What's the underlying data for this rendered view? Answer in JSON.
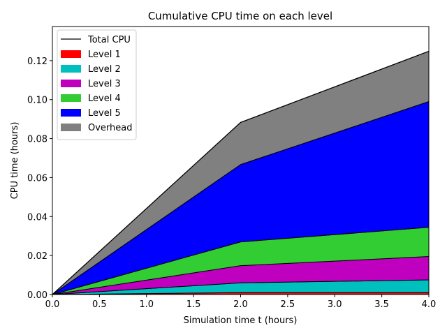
{
  "chart_data": {
    "type": "area",
    "stacked": true,
    "title": "Cumulative CPU time on each level",
    "xlabel": "Simulation time t (hours)",
    "ylabel": "CPU time (hours)",
    "xlim": [
      0.0,
      4.0
    ],
    "ylim": [
      0.0,
      0.1375
    ],
    "x_ticks": [
      "0.0",
      "0.5",
      "1.0",
      "1.5",
      "2.0",
      "2.5",
      "3.0",
      "3.5",
      "4.0"
    ],
    "y_ticks": [
      "0.00",
      "0.02",
      "0.04",
      "0.06",
      "0.08",
      "0.10",
      "0.12"
    ],
    "grid": false,
    "legend_position": "upper-left",
    "x": [
      0.0,
      2.0,
      4.0
    ],
    "series": [
      {
        "name": "Level 1",
        "color": "#ff0000",
        "values": [
          0.0,
          0.001,
          0.001
        ]
      },
      {
        "name": "Level 2",
        "color": "#00bfbf",
        "values": [
          0.0,
          0.005,
          0.0065
        ]
      },
      {
        "name": "Level 3",
        "color": "#bf00bf",
        "values": [
          0.0,
          0.0088,
          0.012
        ]
      },
      {
        "name": "Level 4",
        "color": "#32cd32",
        "values": [
          0.0,
          0.0122,
          0.015
        ]
      },
      {
        "name": "Level 5",
        "color": "#0000ff",
        "values": [
          0.0,
          0.0397,
          0.0645
        ]
      },
      {
        "name": "Overhead",
        "color": "#808080",
        "values": [
          0.0,
          0.0216,
          0.0258
        ]
      }
    ],
    "total_line": {
      "name": "Total CPU",
      "color": "#000000",
      "values": [
        0.0,
        0.0883,
        0.1248
      ]
    }
  }
}
